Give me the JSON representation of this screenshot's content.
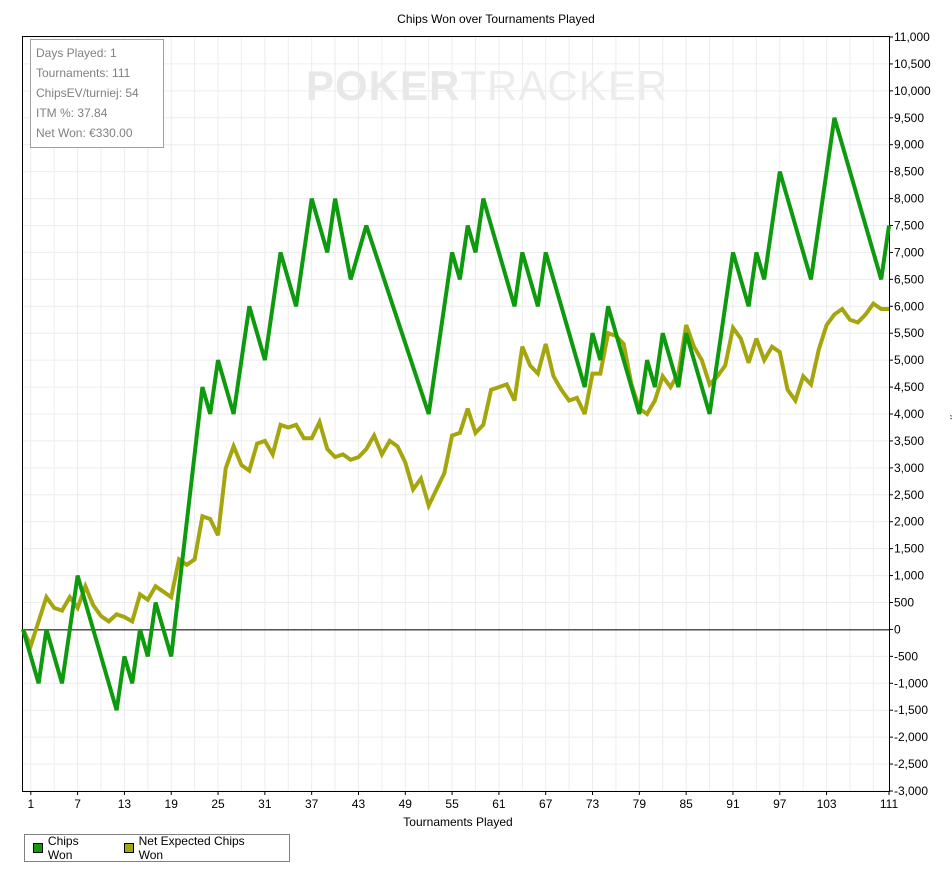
{
  "chart_data": {
    "type": "line",
    "title": "Chips Won over Tournaments Played",
    "xlabel": "Tournaments Played",
    "ylabel": "#",
    "xlim": [
      0,
      111
    ],
    "ylim": [
      -3000,
      11000
    ],
    "x_ticks": [
      1,
      7,
      13,
      19,
      25,
      31,
      37,
      43,
      49,
      55,
      61,
      67,
      73,
      79,
      85,
      91,
      97,
      103,
      111
    ],
    "y_ticks": [
      -3000,
      -2500,
      -2000,
      -1500,
      -1000,
      -500,
      0,
      500,
      1000,
      1500,
      2000,
      2500,
      3000,
      3500,
      4000,
      4500,
      5000,
      5500,
      6000,
      6500,
      7000,
      7500,
      8000,
      8500,
      9000,
      9500,
      10000,
      10500,
      11000
    ],
    "y_tick_labels": [
      "-3,000",
      "-2,500",
      "-2,000",
      "-1,500",
      "-1,000",
      "-500",
      "0",
      "500",
      "1,000",
      "1,500",
      "2,000",
      "2,500",
      "3,000",
      "3,500",
      "4,000",
      "4,500",
      "5,000",
      "5,500",
      "6,000",
      "6,500",
      "7,000",
      "7,500",
      "8,000",
      "8,500",
      "9,000",
      "9,500",
      "10,000",
      "10,500",
      "11,000"
    ],
    "grid": true,
    "legend_position": "bottom-left",
    "series": [
      {
        "name": "Chips Won",
        "color": "#0e9a0e",
        "x": [
          0,
          2,
          3,
          5,
          7,
          12,
          13,
          14,
          15,
          16,
          17,
          19,
          23,
          24,
          25,
          27,
          29,
          31,
          33,
          35,
          37,
          39,
          40,
          42,
          44,
          52,
          55,
          56,
          57,
          58,
          59,
          63,
          64,
          65,
          66,
          67,
          72,
          73,
          74,
          75,
          79,
          80,
          81,
          82,
          83,
          84,
          85,
          88,
          91,
          93,
          94,
          95,
          97,
          101,
          104,
          110,
          111
        ],
        "y": [
          0,
          -1000,
          0,
          -1000,
          1000,
          -1500,
          -500,
          -1000,
          0,
          -500,
          500,
          -500,
          4500,
          4000,
          5000,
          4000,
          6000,
          5000,
          7000,
          6000,
          8000,
          7000,
          8000,
          6500,
          7500,
          4000,
          7000,
          6500,
          7500,
          7000,
          8000,
          6000,
          7000,
          6500,
          6000,
          7000,
          4500,
          5500,
          5000,
          6000,
          4000,
          5000,
          4500,
          5500,
          5000,
          4500,
          5500,
          4000,
          7000,
          6000,
          7000,
          6500,
          8500,
          6500,
          9500,
          6500,
          7500
        ]
      },
      {
        "name": "Net Expected Chips Won",
        "color": "#a5a50e",
        "x": [
          0,
          1,
          3,
          4,
          5,
          6,
          7,
          8,
          9,
          10,
          11,
          12,
          13,
          14,
          15,
          16,
          17,
          18,
          19,
          20,
          21,
          22,
          23,
          24,
          25,
          26,
          27,
          28,
          29,
          30,
          31,
          32,
          33,
          34,
          35,
          36,
          37,
          38,
          39,
          40,
          41,
          42,
          43,
          44,
          45,
          46,
          47,
          48,
          49,
          50,
          51,
          52,
          53,
          54,
          55,
          56,
          57,
          58,
          59,
          60,
          61,
          62,
          63,
          64,
          65,
          66,
          67,
          68,
          69,
          70,
          71,
          72,
          73,
          74,
          75,
          76,
          77,
          78,
          79,
          80,
          81,
          82,
          83,
          84,
          85,
          86,
          87,
          88,
          89,
          90,
          91,
          92,
          93,
          94,
          95,
          96,
          97,
          98,
          99,
          100,
          101,
          102,
          103,
          104,
          105,
          106,
          107,
          108,
          109,
          110,
          111
        ],
        "y": [
          0,
          -300,
          600,
          400,
          350,
          600,
          400,
          800,
          450,
          250,
          150,
          280,
          230,
          150,
          650,
          550,
          800,
          700,
          600,
          1300,
          1200,
          1300,
          2100,
          2050,
          1750,
          3000,
          3400,
          3050,
          2950,
          3450,
          3500,
          3250,
          3800,
          3750,
          3800,
          3550,
          3550,
          3850,
          3350,
          3200,
          3250,
          3150,
          3200,
          3350,
          3600,
          3250,
          3500,
          3400,
          3100,
          2600,
          2800,
          2300,
          2600,
          2900,
          3600,
          3650,
          4100,
          3650,
          3800,
          4450,
          4500,
          4550,
          4250,
          5250,
          4900,
          4750,
          5300,
          4700,
          4450,
          4250,
          4300,
          4000,
          4750,
          4750,
          5500,
          5450,
          5300,
          4550,
          4100,
          4000,
          4250,
          4700,
          4500,
          4750,
          5650,
          5250,
          5000,
          4550,
          4700,
          4900,
          5600,
          5400,
          4950,
          5400,
          5000,
          5250,
          5150,
          4450,
          4250,
          4700,
          4550,
          5200,
          5650,
          5850,
          5950,
          5750,
          5700,
          5850,
          6050,
          5950,
          5950
        ]
      }
    ]
  },
  "stats": {
    "days_played": "Days Played: 1",
    "tournaments": "Tournaments: 111",
    "chipsev": "ChipsEV/turniej: 54",
    "itm": "ITM %: 37.84",
    "net_won": "Net Won: €330.00"
  },
  "watermark": {
    "text_bold": "POKER",
    "text_light": "TRACKER"
  },
  "legend": {
    "items": [
      {
        "label": "Chips Won",
        "color": "#0e9a0e"
      },
      {
        "label": "Net Expected Chips Won",
        "color": "#a5a50e"
      }
    ]
  }
}
